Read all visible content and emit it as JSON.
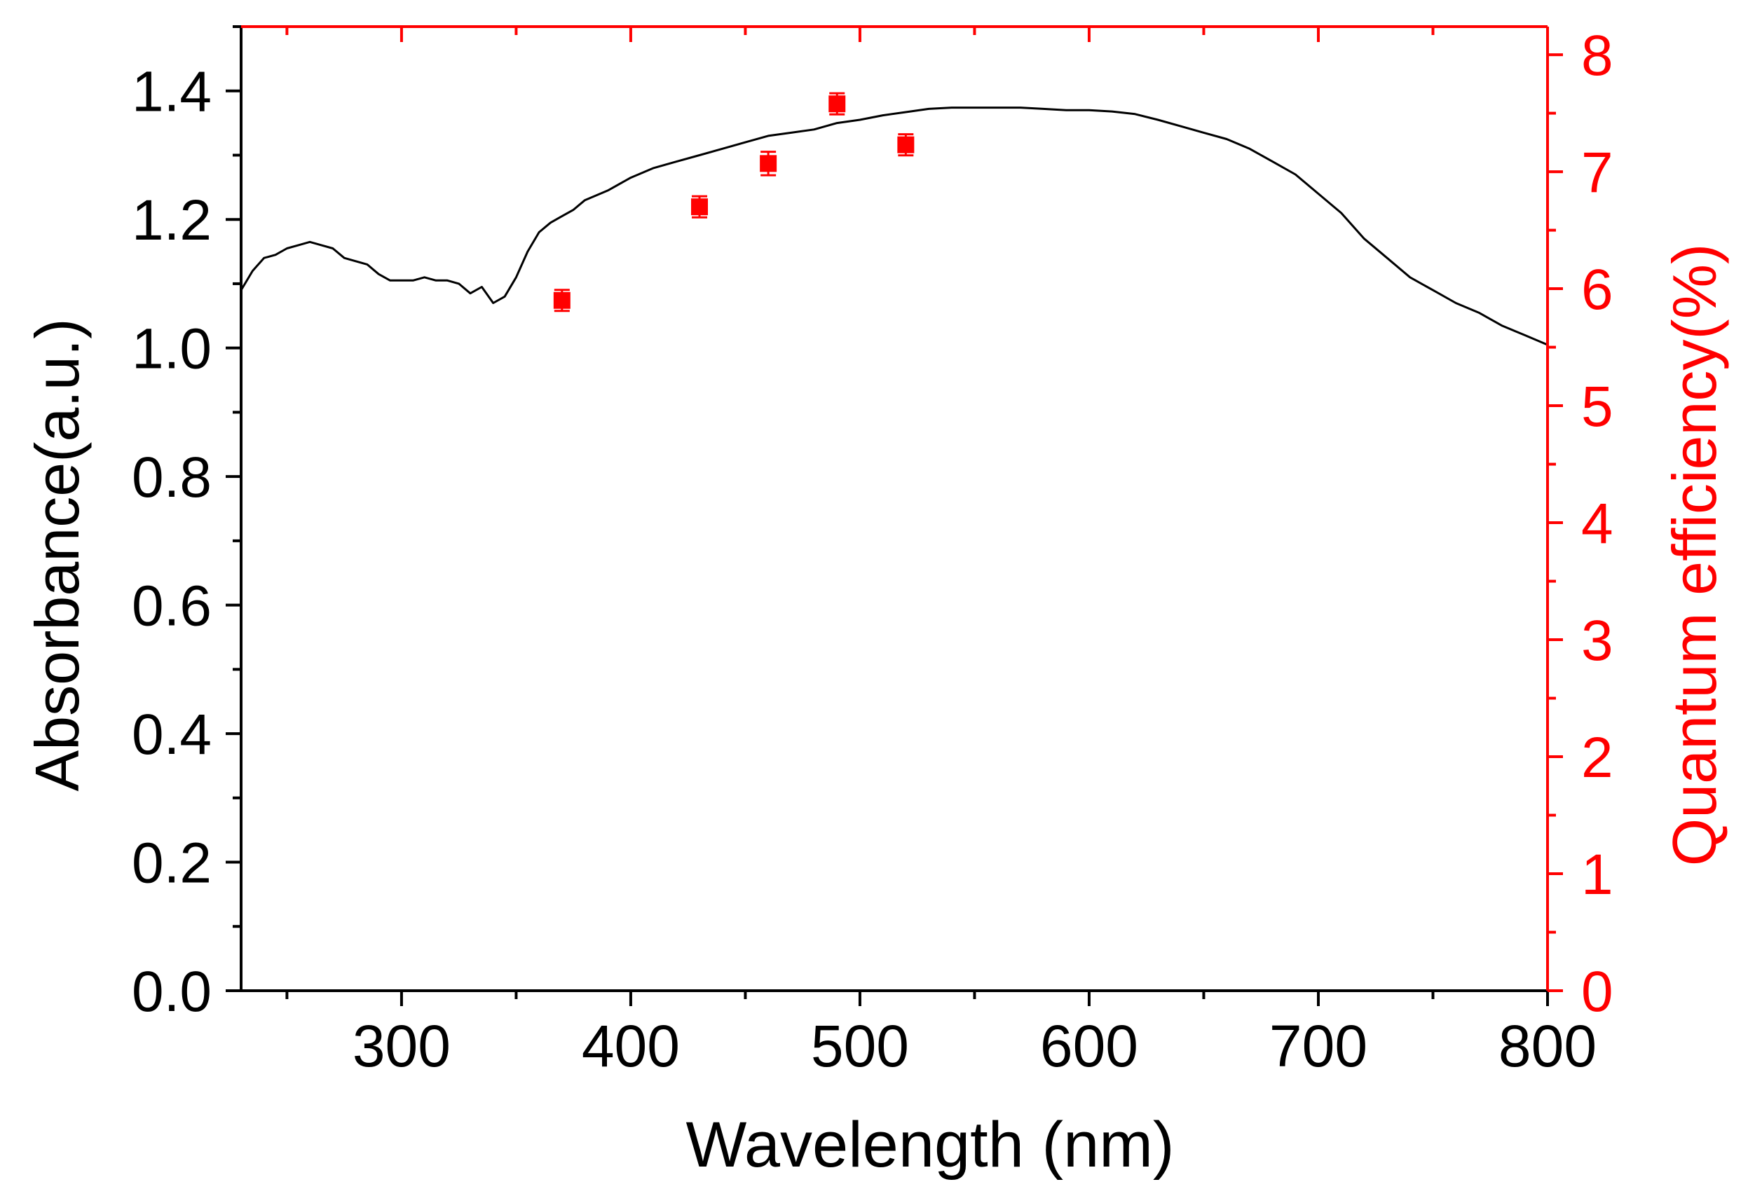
{
  "chart_data": {
    "type": "line",
    "title": "",
    "xlabel": "Wavelength (nm)",
    "ylabel_left": "Absorbance(a.u.)",
    "ylabel_right": "Quantum efficiency(%)",
    "xlim": [
      230,
      800
    ],
    "ylim_left": [
      0.0,
      1.5
    ],
    "ylim_right": [
      0,
      8.24
    ],
    "x_ticks": [
      "300",
      "400",
      "500",
      "600",
      "700",
      "800"
    ],
    "x_tick_values": [
      300,
      400,
      500,
      600,
      700,
      800
    ],
    "y_left_ticks": [
      "0.0",
      "0.2",
      "0.4",
      "0.6",
      "0.8",
      "1.0",
      "1.2",
      "1.4"
    ],
    "y_left_tick_values": [
      0.0,
      0.2,
      0.4,
      0.6,
      0.8,
      1.0,
      1.2,
      1.4
    ],
    "y_right_ticks": [
      "0",
      "1",
      "2",
      "3",
      "4",
      "5",
      "6",
      "7",
      "8"
    ],
    "y_right_tick_values": [
      0,
      1,
      2,
      3,
      4,
      5,
      6,
      7,
      8
    ],
    "grid": false,
    "colors": {
      "left_axis": "#000000",
      "right_axis": "#ff0000",
      "absorbance_line": "#000000",
      "qe_markers": "#ff0000"
    },
    "series": [
      {
        "name": "Absorbance",
        "axis": "left",
        "type": "line",
        "x": [
          230,
          235,
          240,
          245,
          250,
          255,
          260,
          265,
          270,
          275,
          280,
          285,
          290,
          295,
          300,
          305,
          310,
          315,
          320,
          325,
          330,
          335,
          340,
          345,
          350,
          355,
          360,
          365,
          370,
          375,
          380,
          390,
          400,
          410,
          420,
          430,
          440,
          450,
          460,
          470,
          480,
          490,
          500,
          510,
          520,
          530,
          540,
          550,
          560,
          570,
          580,
          590,
          600,
          610,
          620,
          630,
          640,
          650,
          660,
          670,
          680,
          690,
          700,
          710,
          720,
          730,
          740,
          750,
          760,
          770,
          780,
          790,
          800
        ],
        "values": [
          1.09,
          1.12,
          1.14,
          1.145,
          1.155,
          1.16,
          1.165,
          1.16,
          1.155,
          1.14,
          1.135,
          1.13,
          1.115,
          1.105,
          1.105,
          1.105,
          1.11,
          1.105,
          1.105,
          1.1,
          1.085,
          1.095,
          1.07,
          1.08,
          1.11,
          1.15,
          1.18,
          1.195,
          1.205,
          1.215,
          1.23,
          1.245,
          1.265,
          1.28,
          1.29,
          1.3,
          1.31,
          1.32,
          1.33,
          1.335,
          1.34,
          1.35,
          1.355,
          1.362,
          1.367,
          1.372,
          1.374,
          1.374,
          1.374,
          1.374,
          1.372,
          1.37,
          1.37,
          1.368,
          1.364,
          1.355,
          1.345,
          1.335,
          1.325,
          1.31,
          1.29,
          1.27,
          1.24,
          1.21,
          1.17,
          1.14,
          1.11,
          1.09,
          1.07,
          1.055,
          1.035,
          1.02,
          1.005
        ]
      },
      {
        "name": "Quantum efficiency",
        "axis": "right",
        "type": "scatter",
        "x": [
          370,
          430,
          460,
          490,
          520
        ],
        "values": [
          5.9,
          6.7,
          7.07,
          7.58,
          7.23
        ],
        "errors": [
          0.09,
          0.09,
          0.1,
          0.09,
          0.09
        ]
      }
    ]
  }
}
